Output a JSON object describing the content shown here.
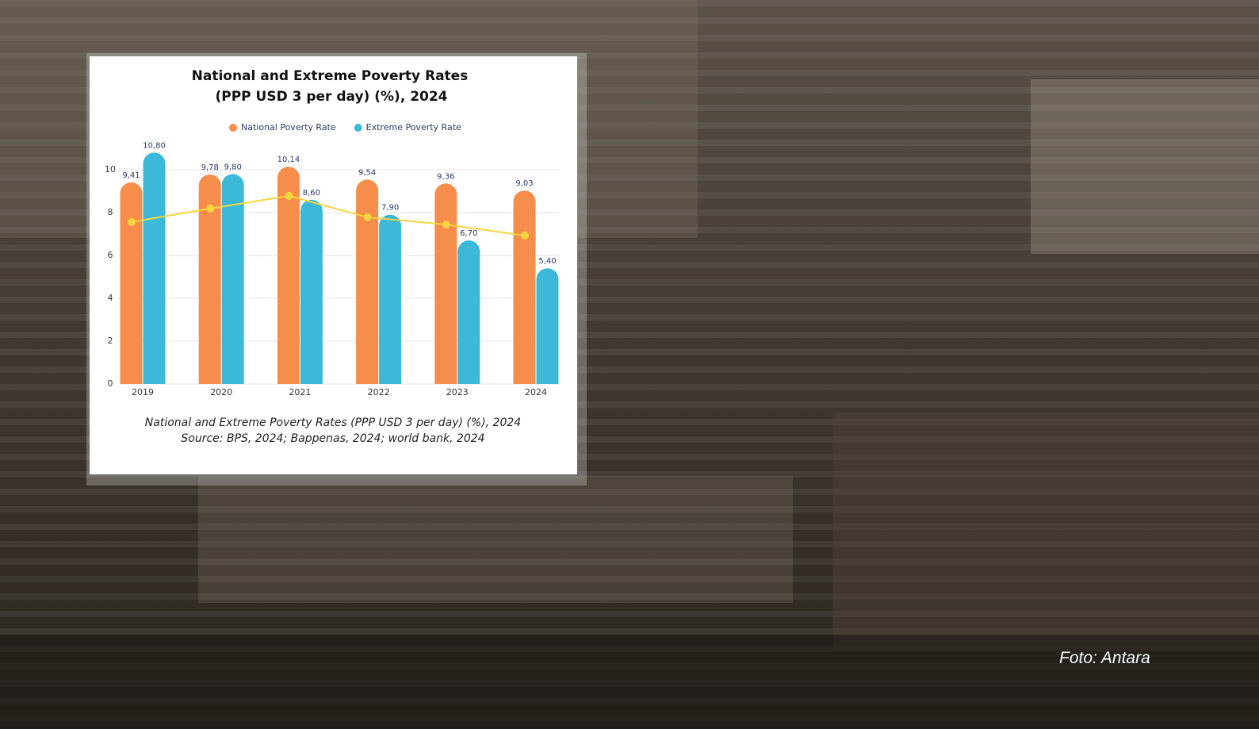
{
  "chart_data": {
    "type": "bar",
    "title": [
      "National and Extreme Poverty Rates",
      "(PPP USD 3 per day) (%), 2024"
    ],
    "categories": [
      "2019",
      "2020",
      "2021",
      "2022",
      "2023",
      "2024"
    ],
    "series": [
      {
        "name": "National Poverty Rate",
        "color": "#f68d4a",
        "values": [
          9.41,
          9.78,
          10.14,
          9.54,
          9.36,
          9.03
        ],
        "value_labels": [
          "9,41",
          "9,78",
          "10,14",
          "9,54",
          "9,36",
          "9,03"
        ]
      },
      {
        "name": "Extreme Poverty Rate",
        "color": "#3cb8d8",
        "values": [
          10.8,
          9.8,
          8.6,
          7.9,
          6.7,
          5.4
        ],
        "value_labels": [
          "10,80",
          "9,80",
          "8,60",
          "7,90",
          "6,70",
          "5,40"
        ]
      },
      {
        "type": "line",
        "color": "#f5d63d",
        "values": [
          7.56,
          8.19,
          8.78,
          7.78,
          7.44,
          6.93
        ]
      }
    ],
    "ylim": [
      0,
      11
    ],
    "yticks": [
      0,
      2,
      4,
      6,
      8,
      10
    ],
    "grid": true,
    "legend": "top"
  },
  "caption": "National and Extreme Poverty Rates (PPP USD 3 per day) (%), 2024",
  "source": "Source: BPS, 2024; Bappenas, 2024; world bank, 2024",
  "photo_credit": "Foto: Antara"
}
